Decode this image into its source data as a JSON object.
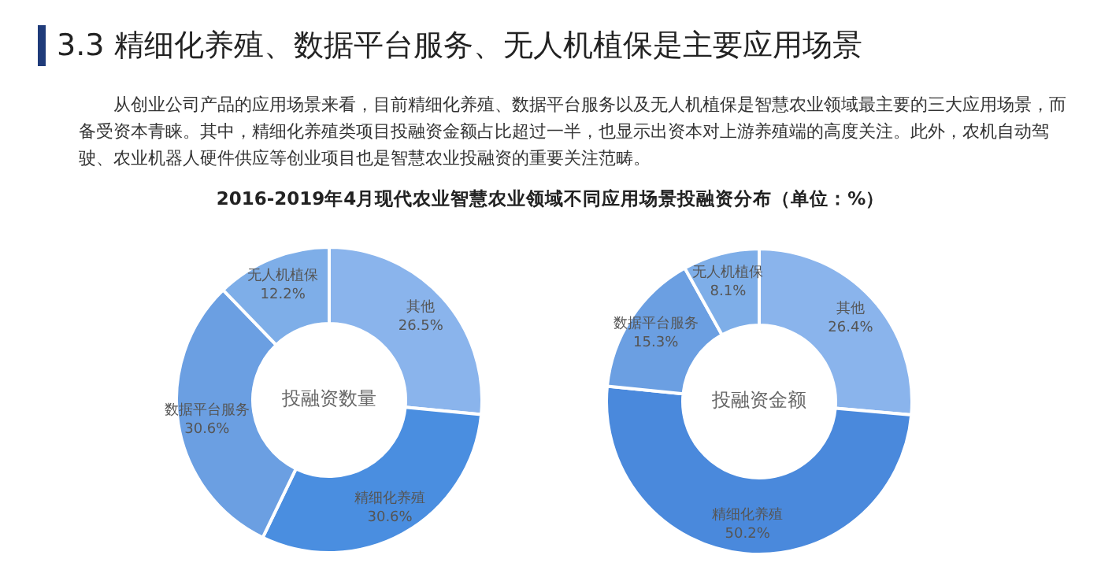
{
  "chart_data": [
    {
      "type": "other",
      "title": "3.3 精细化养殖、数据平台服务、无人机植保是主要应用场景",
      "subtitle": "从创业公司产品的应用场景来看，目前精细化养殖、数据平台服务以及无人机植保是智慧农业领域最主要的三大应用场景，而备受资本青睐。其中，精细化养殖类项目投融资金额占比超过一半，也显示出资本对上游养殖端的高度关注。此外，农机自动驾驶、农业机器人硬件供应等创业项目也是智慧农业投融资的重要关注范畴。",
      "annotations": [
        "2016-2019年4月现代农业智慧农业领域不同应用场景投融资分布（单位：%）"
      ]
    },
    {
      "type": "donut",
      "categories": [
        "其他",
        "精细化养殖",
        "数据平台服务",
        "无人机植保"
      ],
      "values": [
        26.5,
        30.6,
        30.6,
        12.2
      ],
      "value_labels": [
        "26.5%",
        "30.6%",
        "30.6%",
        "12.2%"
      ],
      "colors": [
        "#8ab4ec",
        "#4a8ee0",
        "#6b9fe2",
        "#7eaee8"
      ],
      "annotations": [
        "投融资数量"
      ],
      "legend": false
    },
    {
      "type": "donut",
      "categories": [
        "其他",
        "精细化养殖",
        "数据平台服务",
        "无人机植保"
      ],
      "values": [
        26.4,
        50.2,
        15.3,
        8.1
      ],
      "value_labels": [
        "26.4%",
        "50.2%",
        "15.3%",
        "8.1%"
      ],
      "colors": [
        "#8ab4ec",
        "#4a89dc",
        "#6b9fe2",
        "#7eaee8"
      ],
      "annotations": [
        "投融资金额"
      ],
      "legend": false
    }
  ]
}
